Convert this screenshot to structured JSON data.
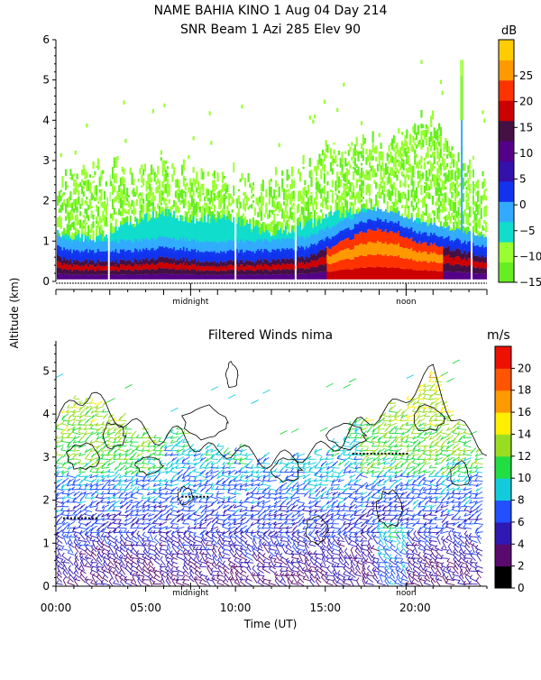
{
  "header": {
    "line1": "NAME BAHIA KINO    1 Aug 04 Day 214",
    "line2": "SNR Beam 1 Azi 285 Elev 90"
  },
  "shared": {
    "ylabel": "Altitude (km)",
    "xlabel": "Time (UT)",
    "midnight_label": "midnight",
    "noon_label": "noon"
  },
  "chart_data": [
    {
      "type": "heatmap",
      "title": "SNR Beam 1 Azi 285 Elev 90",
      "ylim": [
        0,
        6
      ],
      "yticks": [
        "0",
        "1",
        "2",
        "3",
        "4",
        "5",
        "6"
      ],
      "xlim": [
        0,
        24
      ],
      "markers": [
        {
          "x": 7.5,
          "label": "midnight"
        },
        {
          "x": 19.5,
          "label": "noon"
        }
      ],
      "colorbar": {
        "unit": "dB",
        "range": [
          -15,
          32
        ],
        "ticks": [
          "25",
          "20",
          "15",
          "10",
          "5",
          "0",
          "−5",
          "−10",
          "−15"
        ],
        "tick_values": [
          25,
          20,
          15,
          10,
          5,
          0,
          -5,
          -10,
          -15
        ],
        "colors": [
          "#66ee22",
          "#99ff33",
          "#11ddcc",
          "#33aaff",
          "#1133ee",
          "#3311aa",
          "#550088",
          "#441144",
          "#cc0000",
          "#ff3300",
          "#ff9900",
          "#ffcc00"
        ]
      },
      "layers": [
        {
          "level": "weak",
          "description_top_km": [
            2.3,
            2.6,
            2.9,
            2.7,
            2.4,
            2.8,
            3.0,
            2.6,
            2.5,
            2.4,
            2.5,
            2.2,
            2.3,
            2.6,
            2.8,
            3.1,
            3.3,
            3.4,
            3.2,
            3.6,
            3.9,
            4.0,
            3.2,
            2.7,
            2.4
          ]
        },
        {
          "level": "moderate",
          "description_top_km": [
            1.2,
            1.1,
            1.0,
            1.2,
            1.4,
            1.6,
            1.7,
            1.6,
            1.5,
            1.6,
            1.5,
            1.3,
            1.2,
            1.3,
            1.4,
            1.6,
            1.7,
            1.8,
            1.7,
            1.6,
            1.5,
            1.3,
            1.2,
            1.1,
            1.0
          ]
        },
        {
          "level": "strong",
          "description_top_km": [
            0.6,
            0.5,
            0.5,
            0.5,
            0.5,
            0.55,
            0.6,
            0.55,
            0.5,
            0.5,
            0.5,
            0.5,
            0.5,
            0.55,
            0.6,
            0.8,
            1.0,
            1.2,
            1.3,
            1.2,
            1.0,
            0.9,
            0.8,
            0.7,
            0.6
          ]
        }
      ],
      "data_gaps_x": [
        2.9,
        9.95,
        13.3,
        23.1
      ]
    },
    {
      "type": "heatmap",
      "title": "Filtered Winds nima",
      "ylim": [
        0,
        5.7
      ],
      "yticks": [
        "0",
        "1",
        "2",
        "3",
        "4",
        "5"
      ],
      "xlim": [
        0,
        24
      ],
      "xticks": [
        "00:00",
        "05:00",
        "10:00",
        "15:00",
        "20:00"
      ],
      "xtick_values": [
        0,
        5,
        10,
        15,
        20
      ],
      "xlabel": "Time (UT)",
      "markers": [
        {
          "x": 7.5,
          "label": "midnight"
        },
        {
          "x": 19.5,
          "label": "noon"
        }
      ],
      "colorbar": {
        "unit": "m/s",
        "range": [
          0,
          22
        ],
        "ticks": [
          "20",
          "18",
          "16",
          "14",
          "12",
          "10",
          "8",
          "6",
          "4",
          "2",
          "0"
        ],
        "tick_values": [
          20,
          18,
          16,
          14,
          12,
          10,
          8,
          6,
          4,
          2,
          0
        ],
        "colors": [
          "#000000",
          "#5a0a6e",
          "#3018b4",
          "#2050ff",
          "#12ccdd",
          "#22dd44",
          "#99dd22",
          "#ffee00",
          "#ff9900",
          "#ff5500",
          "#ee1100"
        ]
      },
      "wind_top_km": [
        3.8,
        4.3,
        4.5,
        4.0,
        3.8,
        3.6,
        3.4,
        3.6,
        3.2,
        3.1,
        3.2,
        3.0,
        2.9,
        3.0,
        3.1,
        3.2,
        3.4,
        3.8,
        4.0,
        4.2,
        4.6,
        5.0,
        4.0,
        3.5,
        3.2
      ],
      "barb_direction": "westerly"
    }
  ]
}
